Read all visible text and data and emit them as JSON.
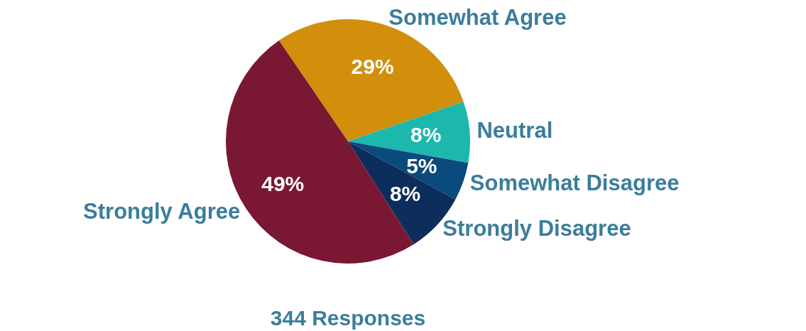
{
  "chart_data": {
    "type": "pie",
    "categories": [
      "Somewhat Agree",
      "Neutral",
      "Somewhat Disagree",
      "Strongly Disagree",
      "Strongly Agree"
    ],
    "values": [
      29,
      8,
      5,
      8,
      49
    ],
    "value_labels": [
      "29%",
      "8%",
      "5%",
      "8%",
      "49%"
    ],
    "colors": [
      "#d18f0c",
      "#1cb7ad",
      "#0b4a7c",
      "#0d2e5b",
      "#7a1834"
    ],
    "legend": false,
    "annotations": [
      "344 Responses"
    ]
  }
}
